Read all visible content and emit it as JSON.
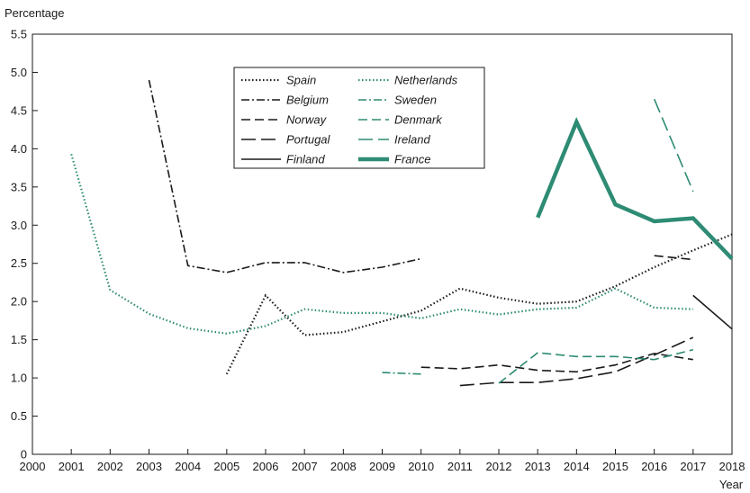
{
  "chart_data": {
    "type": "line",
    "ylabel": "Percentage",
    "xlabel": "Year",
    "xlim": [
      2000,
      2018
    ],
    "ylim": [
      0,
      5.5
    ],
    "x_ticks": [
      "2000",
      "2001",
      "2002",
      "2003",
      "2004",
      "2005",
      "2006",
      "2007",
      "2008",
      "2009",
      "2010",
      "2011",
      "2012",
      "2013",
      "2014",
      "2015",
      "2016",
      "2017",
      "2018"
    ],
    "y_ticks": [
      "0",
      "0.5",
      "1.0",
      "1.5",
      "2.0",
      "2.5",
      "3.0",
      "3.5",
      "4.0",
      "4.5",
      "5.0",
      "5.5"
    ],
    "grid": false,
    "legend_position": "top-center",
    "series": [
      {
        "name": "Spain",
        "color": "#1a1a1a",
        "style": "dotted",
        "points": [
          [
            2005,
            1.05
          ],
          [
            2006,
            2.08
          ],
          [
            2007,
            1.56
          ],
          [
            2008,
            1.6
          ],
          [
            2009,
            1.74
          ],
          [
            2010,
            1.88
          ],
          [
            2011,
            2.17
          ],
          [
            2012,
            2.05
          ],
          [
            2013,
            1.97
          ],
          [
            2014,
            2.0
          ],
          [
            2015,
            2.2
          ],
          [
            2016,
            2.45
          ],
          [
            2017,
            2.67
          ],
          [
            2018,
            2.88
          ]
        ]
      },
      {
        "name": "Belgium",
        "color": "#1a1a1a",
        "style": "dashdot",
        "points": [
          [
            2003,
            4.9
          ],
          [
            2004,
            2.47
          ],
          [
            2005,
            2.38
          ],
          [
            2006,
            2.51
          ],
          [
            2007,
            2.51
          ],
          [
            2008,
            2.38
          ],
          [
            2009,
            2.45
          ],
          [
            2010,
            2.56
          ]
        ]
      },
      {
        "name": "Norway",
        "color": "#1a1a1a",
        "style": "dash",
        "points": [
          [
            2010,
            1.14
          ],
          [
            2011,
            1.12
          ],
          [
            2012,
            1.17
          ],
          [
            2013,
            1.1
          ],
          [
            2014,
            1.08
          ],
          [
            2015,
            1.17
          ],
          [
            2016,
            1.32
          ],
          [
            2017,
            1.24
          ]
        ]
      },
      {
        "name": "Portugal",
        "color": "#1a1a1a",
        "style": "longdash",
        "points": [
          [
            2011,
            0.9
          ],
          [
            2012,
            0.94
          ],
          [
            2013,
            0.94
          ],
          [
            2014,
            0.99
          ],
          [
            2015,
            1.08
          ],
          [
            2016,
            1.3
          ],
          [
            2017,
            1.53
          ]
        ]
      },
      {
        "name": "Finland",
        "color": "#1a1a1a",
        "style": "solid",
        "points": [
          [
            2017,
            2.08
          ],
          [
            2018,
            1.64
          ]
        ]
      },
      {
        "name": "Netherlands",
        "color": "#2e8b74",
        "style": "dotted",
        "points": [
          [
            2001,
            3.93
          ],
          [
            2002,
            2.15
          ],
          [
            2003,
            1.84
          ],
          [
            2004,
            1.65
          ],
          [
            2005,
            1.58
          ],
          [
            2006,
            1.68
          ],
          [
            2007,
            1.9
          ],
          [
            2008,
            1.85
          ],
          [
            2009,
            1.85
          ],
          [
            2010,
            1.78
          ],
          [
            2011,
            1.9
          ],
          [
            2012,
            1.83
          ],
          [
            2013,
            1.9
          ],
          [
            2014,
            1.92
          ],
          [
            2015,
            2.17
          ],
          [
            2016,
            1.92
          ],
          [
            2017,
            1.9
          ]
        ]
      },
      {
        "name": "Sweden",
        "color": "#2e8b74",
        "style": "dashdot",
        "points": [
          [
            2009,
            1.07
          ],
          [
            2010,
            1.05
          ]
        ]
      },
      {
        "name": "Denmark",
        "color": "#2e8b74",
        "style": "dash",
        "points": [
          [
            2012,
            0.93
          ],
          [
            2013,
            1.33
          ],
          [
            2014,
            1.28
          ],
          [
            2015,
            1.28
          ],
          [
            2016,
            1.24
          ],
          [
            2017,
            1.37
          ]
        ]
      },
      {
        "name": "Ireland",
        "color": "#2e8b74",
        "style": "longdash",
        "points": [
          [
            2016,
            4.65
          ],
          [
            2017,
            3.44
          ]
        ]
      },
      {
        "name": "France",
        "color": "#2e8b74",
        "style": "thick",
        "points": [
          [
            2013,
            3.1
          ],
          [
            2014,
            4.35
          ],
          [
            2015,
            3.27
          ],
          [
            2016,
            3.05
          ],
          [
            2017,
            3.09
          ],
          [
            2018,
            2.56
          ]
        ]
      }
    ],
    "extra_segments": [
      {
        "series": "Norway",
        "points": [
          [
            2016,
            2.6
          ],
          [
            2017,
            2.55
          ]
        ]
      }
    ]
  }
}
